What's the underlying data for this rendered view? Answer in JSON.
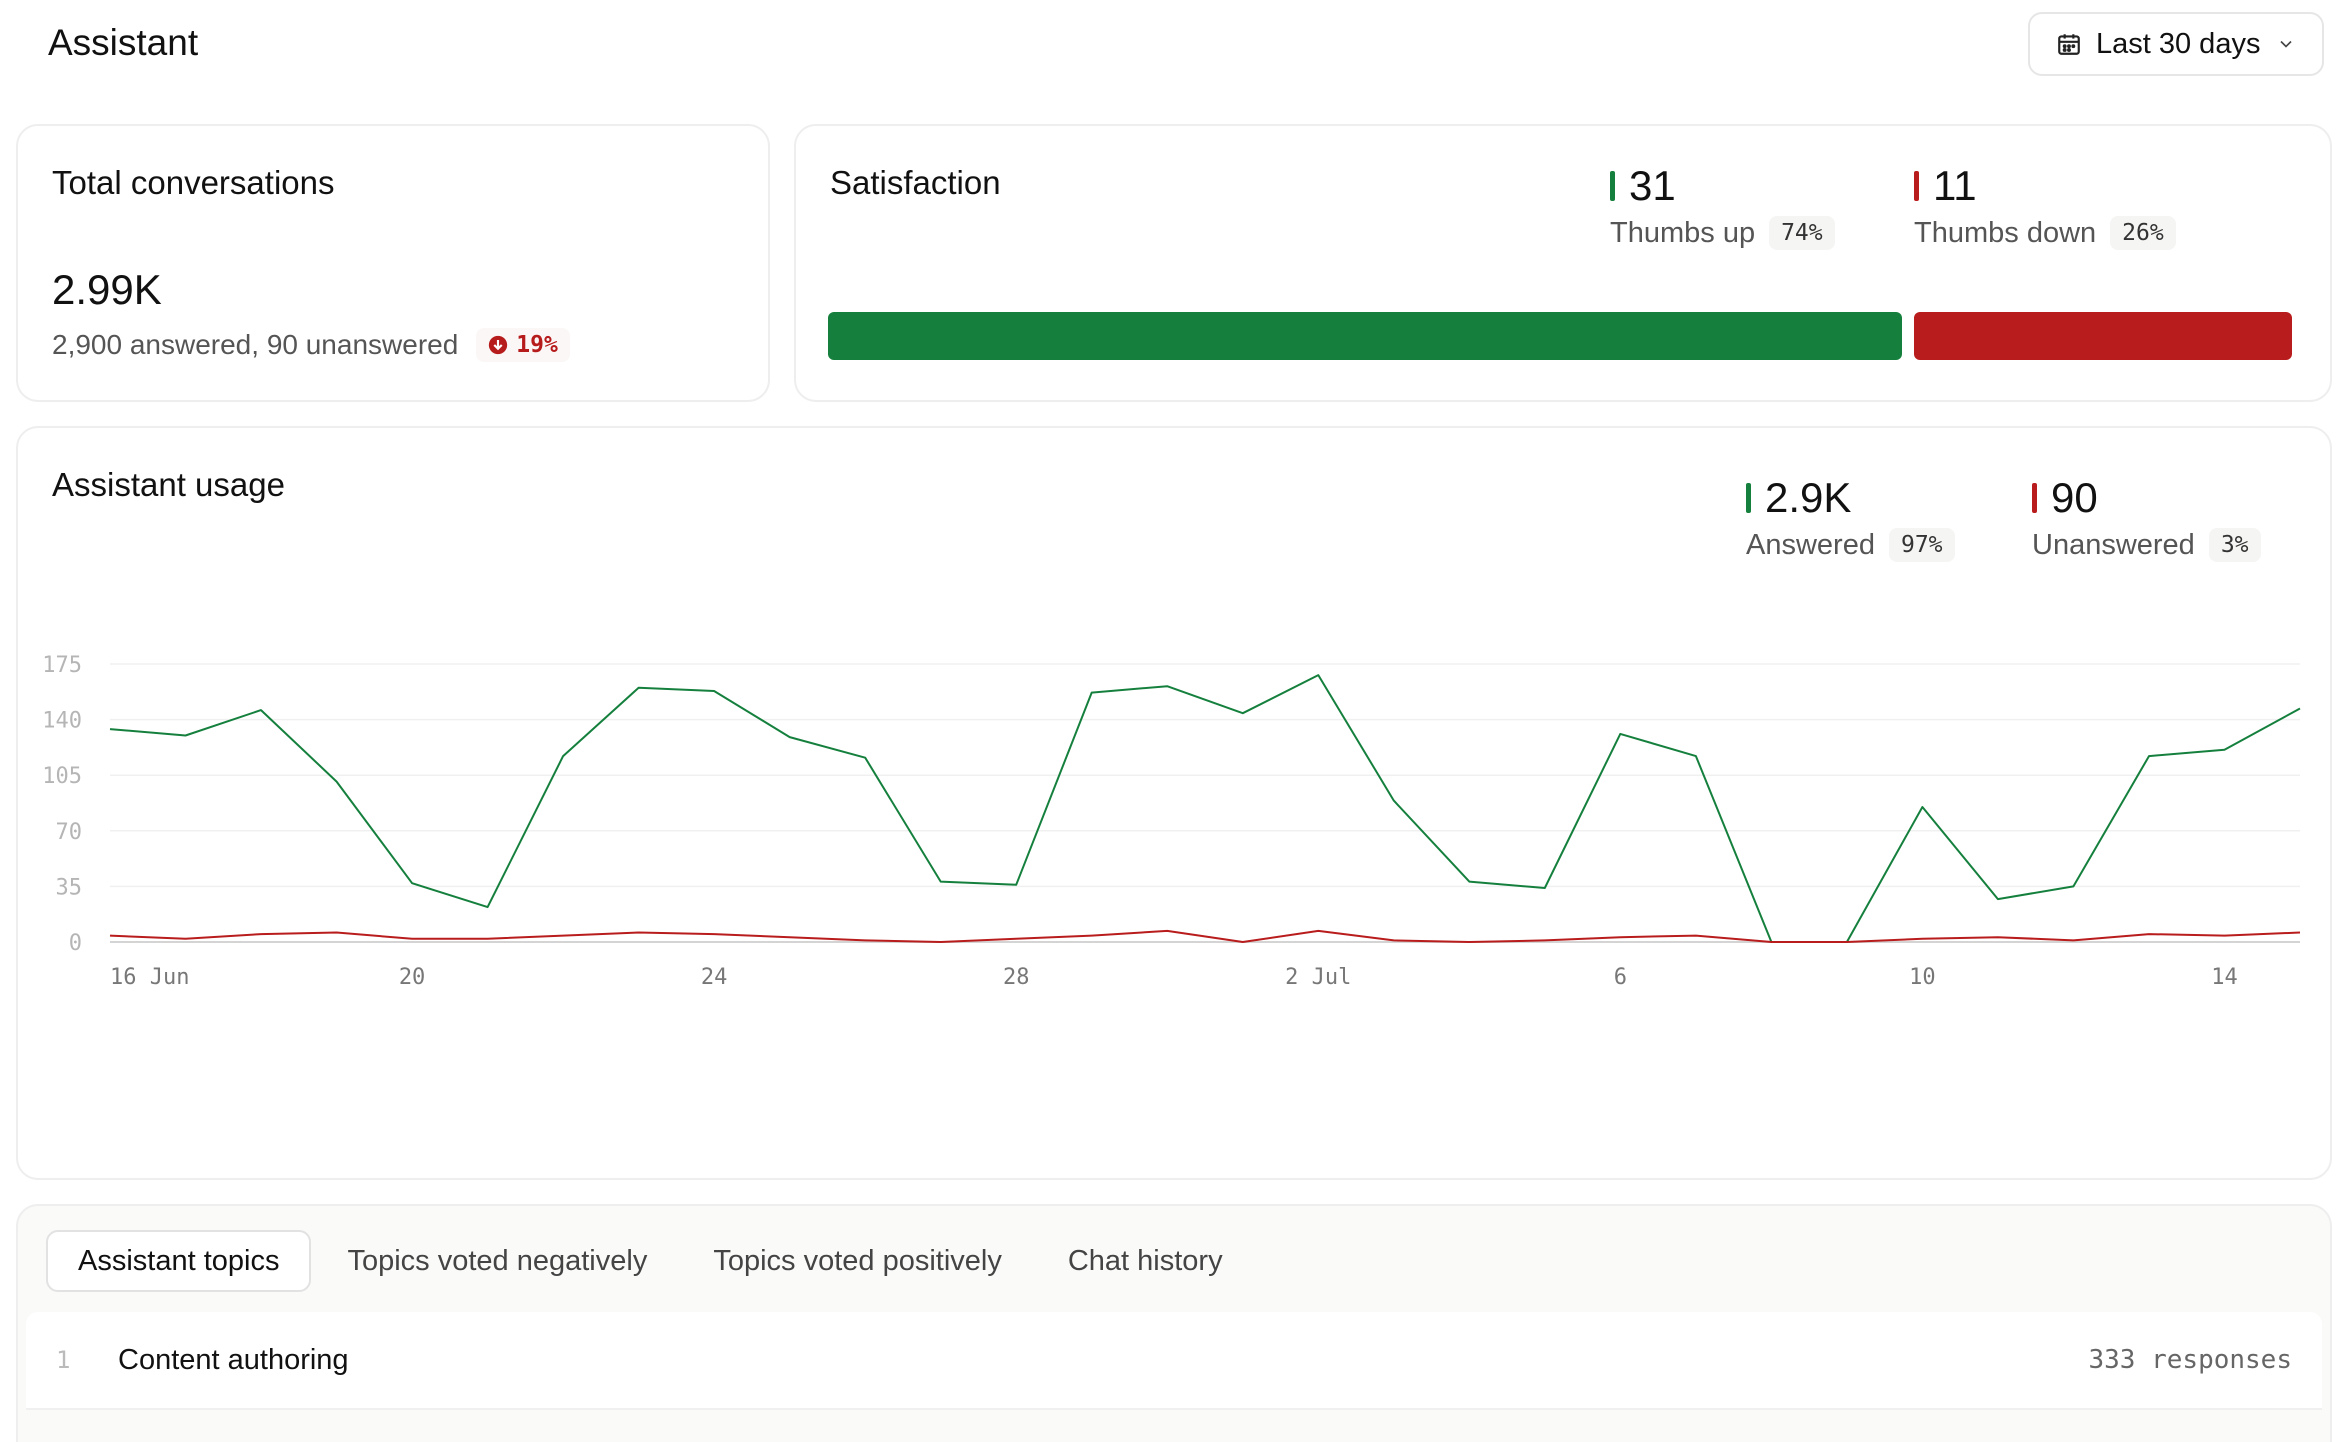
{
  "header": {
    "title": "Assistant",
    "date_range": "Last 30 days",
    "calendar_icon": "calendar-icon",
    "chevron_icon": "chevron-down-icon"
  },
  "total_conversations": {
    "title": "Total conversations",
    "value": "2.99K",
    "detail": "2,900 answered, 90 unanswered",
    "change": "19%",
    "change_direction": "down"
  },
  "satisfaction": {
    "title": "Satisfaction",
    "thumbs_up": {
      "value": "31",
      "label": "Thumbs up",
      "percent": "74%",
      "fraction": 0.74
    },
    "thumbs_down": {
      "value": "11",
      "label": "Thumbs down",
      "percent": "26%",
      "fraction": 0.26
    }
  },
  "usage": {
    "title": "Assistant usage",
    "answered": {
      "value": "2.9K",
      "label": "Answered",
      "percent": "97%"
    },
    "unanswered": {
      "value": "90",
      "label": "Unanswered",
      "percent": "3%"
    }
  },
  "colors": {
    "positive": "#15803d",
    "negative": "#b91c1c"
  },
  "chart_data": {
    "type": "line",
    "title": "Assistant usage",
    "y_ticks": [
      0,
      35,
      70,
      105,
      140,
      175
    ],
    "ylim": [
      0,
      175
    ],
    "x_tick_labels": [
      {
        "index": 0,
        "label": "16 Jun"
      },
      {
        "index": 4,
        "label": "20"
      },
      {
        "index": 8,
        "label": "24"
      },
      {
        "index": 12,
        "label": "28"
      },
      {
        "index": 16,
        "label": "2 Jul"
      },
      {
        "index": 20,
        "label": "6"
      },
      {
        "index": 24,
        "label": "10"
      },
      {
        "index": 28,
        "label": "14"
      }
    ],
    "grid": true,
    "series": [
      {
        "name": "Answered",
        "color": "#15803d",
        "values": [
          134,
          130,
          146,
          101,
          37,
          22,
          117,
          160,
          158,
          129,
          116,
          38,
          36,
          157,
          161,
          144,
          168,
          89,
          38,
          34,
          131,
          117,
          0,
          0,
          85,
          27,
          35,
          117,
          121,
          147
        ]
      },
      {
        "name": "Unanswered",
        "color": "#b91c1c",
        "values": [
          4,
          2,
          5,
          6,
          2,
          2,
          4,
          6,
          5,
          3,
          1,
          0,
          2,
          4,
          7,
          0,
          7,
          1,
          0,
          1,
          3,
          4,
          0,
          0,
          2,
          3,
          1,
          5,
          4,
          6
        ]
      }
    ]
  },
  "topics": {
    "tabs": [
      "Assistant topics",
      "Topics voted negatively",
      "Topics voted positively",
      "Chat history"
    ],
    "active_tab": 0,
    "rows": [
      {
        "rank": "1",
        "name": "Content authoring",
        "count": "333 responses"
      }
    ]
  }
}
